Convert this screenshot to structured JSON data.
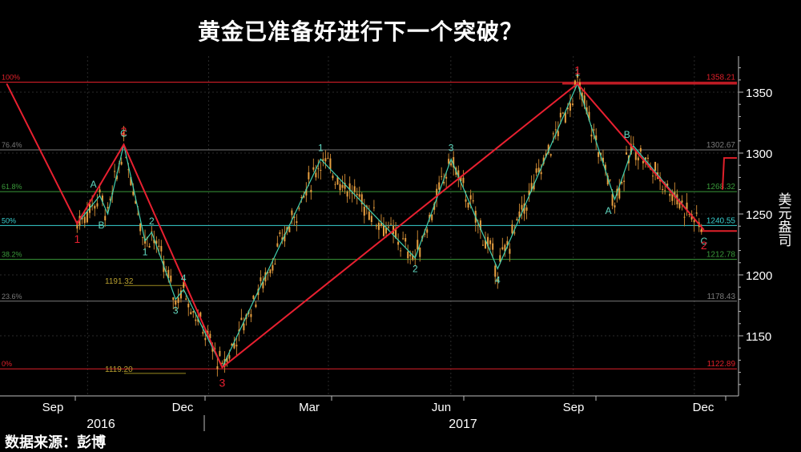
{
  "title": "黄金已准备好进行下一个突破？",
  "source": "数据来源：彭博",
  "chart_data": {
    "type": "candlestick",
    "ylabel": "美元盎司",
    "ylim": [
      1100,
      1380
    ],
    "y_ticks": [
      1150,
      1200,
      1250,
      1300,
      1350
    ],
    "x_ticks": [
      "Sep",
      "Dec",
      "Mar",
      "Jun",
      "Sep",
      "Dec"
    ],
    "year_labels": [
      "2016",
      "2017"
    ],
    "fib_levels": [
      {
        "pct": "100%",
        "value": 1358.21,
        "color": "#e0202a"
      },
      {
        "pct": "76.4%",
        "value": 1302.67,
        "color": "#7a7a7a"
      },
      {
        "pct": "61.8%",
        "value": 1268.32,
        "color": "#3a9a3a"
      },
      {
        "pct": "50%",
        "value": 1240.55,
        "color": "#38d0d0"
      },
      {
        "pct": "38.2%",
        "value": 1212.78,
        "color": "#3a9a3a"
      },
      {
        "pct": "23.6%",
        "value": 1178.43,
        "color": "#7a7a7a"
      },
      {
        "pct": "0%",
        "value": 1122.89,
        "color": "#e0202a"
      }
    ],
    "short_levels": [
      {
        "label": "1191.32",
        "value": 1191.32
      },
      {
        "label": "1119.20",
        "value": 1119.2
      }
    ],
    "support_line": {
      "value": 1236,
      "label": ""
    },
    "resistance_line": {
      "value": 1296
    },
    "red_wave": {
      "points": [
        {
          "date": "2016-07-06",
          "value": 1357
        },
        {
          "date": "2016-08-28",
          "value": 1242,
          "label": "1"
        },
        {
          "date": "2016-10-02",
          "value": 1307,
          "label": "2"
        },
        {
          "date": "2016-12-15",
          "value": 1124,
          "label": "3"
        },
        {
          "date": "2017-09-08",
          "value": 1357,
          "label": "1"
        },
        {
          "date": "2017-12-12",
          "value": 1237,
          "label": "2"
        }
      ]
    },
    "cyan_wave": {
      "points": [
        {
          "date": "2016-08-28",
          "value": 1242
        },
        {
          "date": "2016-09-14",
          "value": 1265,
          "label": "A"
        },
        {
          "date": "2016-09-20",
          "value": 1250,
          "label": "B"
        },
        {
          "date": "2016-10-02",
          "value": 1307,
          "label": "C"
        },
        {
          "date": "2016-10-18",
          "value": 1228,
          "label": "1"
        },
        {
          "date": "2016-10-23",
          "value": 1235,
          "label": "2"
        },
        {
          "date": "2016-11-10",
          "value": 1180,
          "label": "3"
        },
        {
          "date": "2016-11-16",
          "value": 1188,
          "label": "4"
        },
        {
          "date": "2016-12-15",
          "value": 1124
        },
        {
          "date": "2017-02-27",
          "value": 1295,
          "label": "1"
        },
        {
          "date": "2017-05-09",
          "value": 1214,
          "label": "2"
        },
        {
          "date": "2017-06-05",
          "value": 1295,
          "label": "3"
        },
        {
          "date": "2017-07-10",
          "value": 1205,
          "label": "4"
        },
        {
          "date": "2017-09-08",
          "value": 1357,
          "label": "1"
        },
        {
          "date": "2017-10-06",
          "value": 1262,
          "label": "A"
        },
        {
          "date": "2017-10-20",
          "value": 1306,
          "label": "B"
        },
        {
          "date": "2017-12-12",
          "value": 1237,
          "label": "C"
        }
      ]
    },
    "candles": []
  }
}
